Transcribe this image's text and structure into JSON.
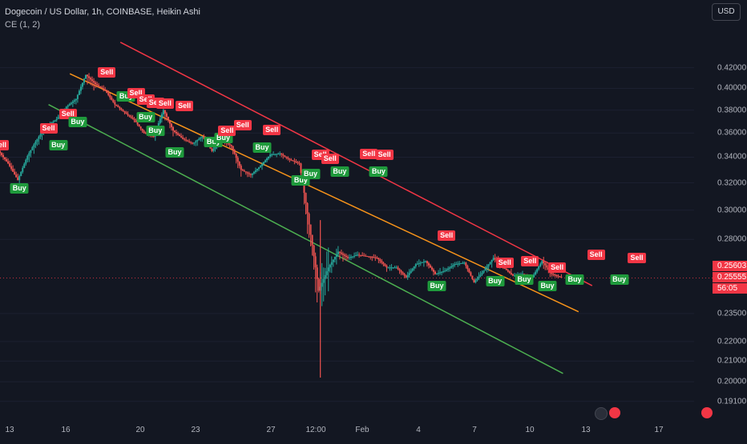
{
  "header": {
    "title": "Dogecoin / US Dollar, 1h, COINBASE, Heikin Ashi",
    "indicator": "CE (1, 2)",
    "currency_button": "USD"
  },
  "colors": {
    "background": "#131722",
    "up": "#26a69a",
    "down": "#ef5350",
    "buy": "#1f9a3c",
    "sell": "#f23645",
    "upper_line": "#f23645",
    "mid_line": "#f7931a",
    "lower_line": "#4caf50",
    "price_line": "#f23645"
  },
  "chart_data": {
    "type": "line",
    "symbol": "Dogecoin / US Dollar",
    "interval": "1h",
    "exchange": "COINBASE",
    "style": "Heikin Ashi",
    "y_ticks": [
      "0.42000",
      "0.40000",
      "0.38000",
      "0.36000",
      "0.34000",
      "0.32000",
      "0.30000",
      "0.28000",
      "0.23500",
      "0.22000",
      "0.21000",
      "0.20000",
      "0.19100"
    ],
    "y_scale": "log",
    "x_ticks": [
      "13",
      "16",
      "20",
      "23",
      "27",
      "12:00",
      "Feb",
      "4",
      "7",
      "10",
      "13",
      "17"
    ],
    "price_badge": [
      "0.25603",
      "0.25555",
      "56:05"
    ],
    "series": [
      {
        "type": "candles",
        "x": [
          0.0,
          0.5,
          1.0,
          1.5,
          2.0,
          2.5,
          3.0,
          3.5,
          4.0,
          4.5,
          5.0,
          5.5,
          6.0,
          6.5,
          7.0,
          7.5,
          8.0,
          8.5,
          9.0,
          9.5,
          10.0,
          10.5,
          11.0,
          11.5,
          12.0,
          12.5,
          13.0,
          13.5,
          14.0,
          14.5,
          15.0,
          15.5,
          16.0,
          16.5,
          17.0,
          17.5,
          18.0,
          18.5,
          19.0,
          19.5,
          20.0,
          20.5,
          21.0,
          21.5,
          22.0,
          22.5,
          23.0,
          23.5,
          24.0,
          24.5,
          25.0,
          25.5,
          26.0,
          26.5,
          27.0,
          27.5,
          28.0,
          28.5,
          29.0
        ],
        "close": [
          0.345,
          0.335,
          0.322,
          0.341,
          0.355,
          0.366,
          0.372,
          0.383,
          0.39,
          0.413,
          0.404,
          0.398,
          0.385,
          0.378,
          0.371,
          0.36,
          0.357,
          0.38,
          0.362,
          0.355,
          0.351,
          0.357,
          0.345,
          0.355,
          0.349,
          0.33,
          0.326,
          0.333,
          0.342,
          0.343,
          0.338,
          0.335,
          0.29,
          0.248,
          0.262,
          0.272,
          0.268,
          0.27,
          0.269,
          0.268,
          0.262,
          0.262,
          0.256,
          0.264,
          0.266,
          0.258,
          0.26,
          0.264,
          0.265,
          0.253,
          0.26,
          0.268,
          0.262,
          0.257,
          0.258,
          0.256,
          0.266,
          0.258,
          0.256
        ],
        "high": [
          0.352,
          0.345,
          0.328,
          0.347,
          0.36,
          0.372,
          0.379,
          0.389,
          0.397,
          0.424,
          0.414,
          0.405,
          0.393,
          0.386,
          0.377,
          0.365,
          0.364,
          0.385,
          0.37,
          0.362,
          0.355,
          0.364,
          0.352,
          0.36,
          0.356,
          0.337,
          0.334,
          0.34,
          0.35,
          0.348,
          0.346,
          0.339,
          0.297,
          0.293,
          0.273,
          0.278,
          0.275,
          0.276,
          0.278,
          0.272,
          0.268,
          0.266,
          0.266,
          0.271,
          0.269,
          0.266,
          0.266,
          0.269,
          0.268,
          0.262,
          0.266,
          0.279,
          0.27,
          0.263,
          0.261,
          0.26,
          0.274,
          0.264,
          0.26
        ],
        "low": [
          0.337,
          0.33,
          0.314,
          0.322,
          0.34,
          0.355,
          0.366,
          0.371,
          0.38,
          0.39,
          0.398,
          0.389,
          0.379,
          0.372,
          0.366,
          0.353,
          0.346,
          0.358,
          0.354,
          0.35,
          0.339,
          0.35,
          0.338,
          0.346,
          0.33,
          0.321,
          0.318,
          0.323,
          0.333,
          0.335,
          0.331,
          0.29,
          0.242,
          0.202,
          0.246,
          0.259,
          0.263,
          0.265,
          0.26,
          0.26,
          0.255,
          0.256,
          0.251,
          0.255,
          0.259,
          0.252,
          0.253,
          0.258,
          0.258,
          0.25,
          0.25,
          0.259,
          0.255,
          0.251,
          0.252,
          0.253,
          0.256,
          0.254,
          0.253
        ]
      },
      {
        "name": "",
        "type": "trendline",
        "color": "upper",
        "x": [
          6.2,
          30.5
        ],
        "y": [
          0.446,
          0.251
        ]
      },
      {
        "name": "",
        "type": "trendline",
        "color": "mid",
        "x": [
          3.6,
          29.8
        ],
        "y": [
          0.414,
          0.236
        ]
      },
      {
        "name": "",
        "type": "trendline",
        "color": "lower",
        "x": [
          2.5,
          29.0
        ],
        "y": [
          0.385,
          0.204
        ]
      }
    ],
    "signals": [
      {
        "type": "Sell",
        "x": 0.0,
        "y": 0.35
      },
      {
        "type": "Buy",
        "x": 1.0,
        "y": 0.316
      },
      {
        "type": "Sell",
        "x": 2.5,
        "y": 0.364
      },
      {
        "type": "Buy",
        "x": 3.0,
        "y": 0.35
      },
      {
        "type": "Sell",
        "x": 3.5,
        "y": 0.377
      },
      {
        "type": "Buy",
        "x": 4.0,
        "y": 0.37
      },
      {
        "type": "Sell",
        "x": 5.5,
        "y": 0.416
      },
      {
        "type": "Buy",
        "x": 6.5,
        "y": 0.393
      },
      {
        "type": "Sell",
        "x": 7.0,
        "y": 0.396
      },
      {
        "type": "Sell",
        "x": 7.5,
        "y": 0.39
      },
      {
        "type": "Sell",
        "x": 8.0,
        "y": 0.387
      },
      {
        "type": "Sell",
        "x": 8.5,
        "y": 0.386
      },
      {
        "type": "Buy",
        "x": 7.5,
        "y": 0.374
      },
      {
        "type": "Buy",
        "x": 8.0,
        "y": 0.362
      },
      {
        "type": "Buy",
        "x": 9.0,
        "y": 0.344
      },
      {
        "type": "Sell",
        "x": 9.5,
        "y": 0.384
      },
      {
        "type": "Buy",
        "x": 11.0,
        "y": 0.353
      },
      {
        "type": "Buy",
        "x": 11.5,
        "y": 0.356
      },
      {
        "type": "Sell",
        "x": 11.7,
        "y": 0.362
      },
      {
        "type": "Sell",
        "x": 12.5,
        "y": 0.367
      },
      {
        "type": "Buy",
        "x": 13.5,
        "y": 0.348
      },
      {
        "type": "Sell",
        "x": 14.0,
        "y": 0.363
      },
      {
        "type": "Buy",
        "x": 15.5,
        "y": 0.322
      },
      {
        "type": "Sell",
        "x": 16.5,
        "y": 0.342
      },
      {
        "type": "Buy",
        "x": 16.0,
        "y": 0.327
      },
      {
        "type": "Sell",
        "x": 17.0,
        "y": 0.339
      },
      {
        "type": "Buy",
        "x": 17.5,
        "y": 0.329
      },
      {
        "type": "Sell",
        "x": 19.0,
        "y": 0.343
      },
      {
        "type": "Sell",
        "x": 19.8,
        "y": 0.342
      },
      {
        "type": "Buy",
        "x": 19.5,
        "y": 0.329
      },
      {
        "type": "Buy",
        "x": 22.5,
        "y": 0.251
      },
      {
        "type": "Sell",
        "x": 23.0,
        "y": 0.283
      },
      {
        "type": "Buy",
        "x": 25.5,
        "y": 0.254
      },
      {
        "type": "Sell",
        "x": 26.0,
        "y": 0.265
      },
      {
        "type": "Buy",
        "x": 27.0,
        "y": 0.255
      },
      {
        "type": "Sell",
        "x": 27.3,
        "y": 0.266
      },
      {
        "type": "Buy",
        "x": 28.2,
        "y": 0.251
      },
      {
        "type": "Sell",
        "x": 28.7,
        "y": 0.262
      },
      {
        "type": "Buy",
        "x": 29.6,
        "y": 0.255
      },
      {
        "type": "Sell",
        "x": 30.7,
        "y": 0.27
      },
      {
        "type": "Buy",
        "x": 31.9,
        "y": 0.255
      },
      {
        "type": "Sell",
        "x": 32.8,
        "y": 0.268
      }
    ]
  }
}
